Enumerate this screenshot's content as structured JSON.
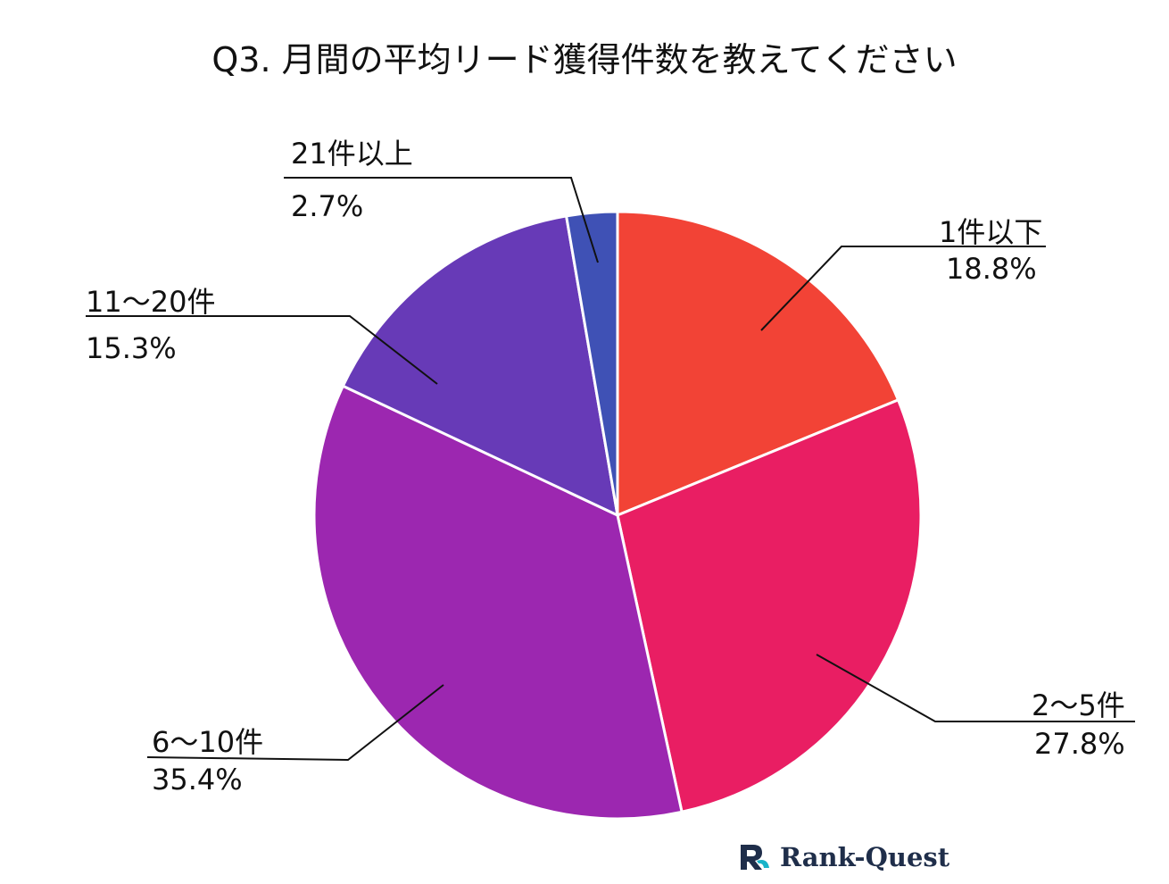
{
  "chart_data": {
    "type": "pie",
    "title": "Q3. 月間の平均リード獲得件数を教えてください",
    "categories": [
      "1件以下",
      "2〜5件",
      "6〜10件",
      "11〜20件",
      "21件以上"
    ],
    "values": [
      18.8,
      27.8,
      35.4,
      15.3,
      2.7
    ],
    "value_labels": [
      "18.8%",
      "27.8%",
      "35.4%",
      "15.3%",
      "2.7%"
    ],
    "colors": [
      "#f24336",
      "#e91e63",
      "#9c27b0",
      "#673ab7",
      "#3f51b5"
    ],
    "start_angle": "12 o'clock",
    "direction": "clockwise",
    "legend": "none"
  },
  "brand": {
    "name": "Rank-Quest",
    "icon": "rank-quest-logo-icon",
    "colors": [
      "#1f2e4a",
      "#19b3c9"
    ]
  }
}
